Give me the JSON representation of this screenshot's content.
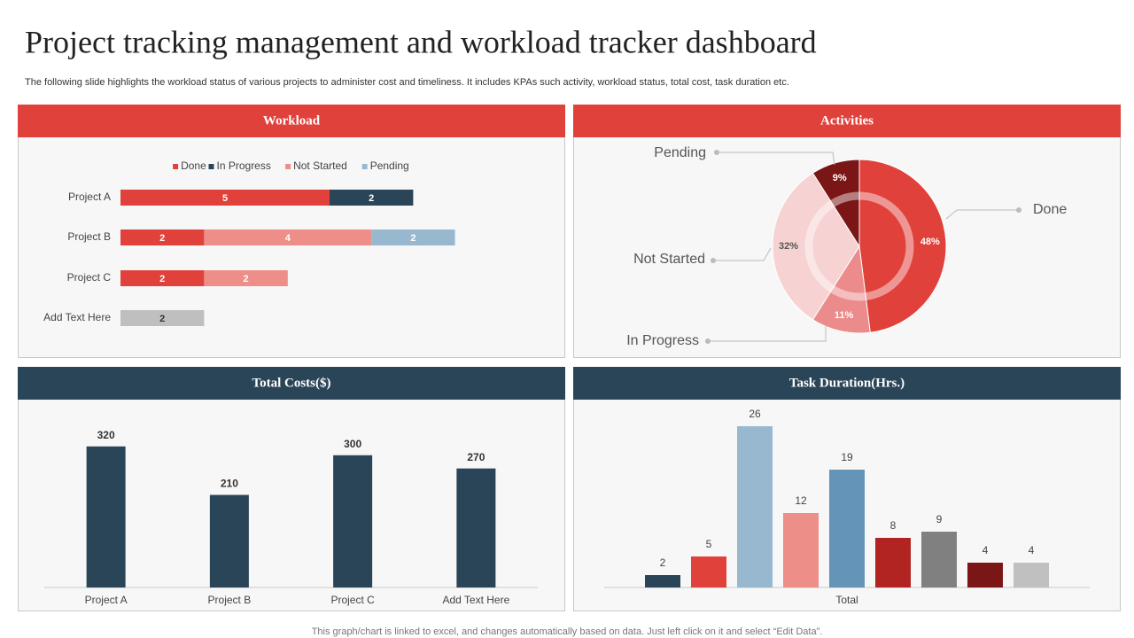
{
  "title": "Project tracking management and workload tracker dashboard",
  "subtitle": "The following slide highlights the workload status of various projects to administer cost and timeliness. It includes KPAs such activity,  workload status, total cost, task duration etc.",
  "footer": "This graph/chart is linked to excel,  and changes automatically based on data. Just left click on it and select “Edit Data”.",
  "chart_data": [
    {
      "type": "bar",
      "orientation": "horizontal",
      "stacked": true,
      "title": "Workload",
      "categories": [
        "Project A",
        "Project B",
        "Project C",
        "Add Text Here"
      ],
      "series": [
        {
          "name": "Done",
          "color": "#e0413b",
          "values": [
            5,
            2,
            2,
            null
          ]
        },
        {
          "name": "In Progress",
          "color": "#2a4458",
          "values": [
            2,
            null,
            null,
            null
          ]
        },
        {
          "name": "Not Started",
          "color": "#ee8e88",
          "values": [
            null,
            4,
            2,
            null
          ]
        },
        {
          "name": "Pending",
          "color": "#98b8d0",
          "values": [
            null,
            2,
            null,
            null
          ]
        },
        {
          "color": "#bfbfbf",
          "values": [
            null,
            null,
            null,
            2
          ]
        }
      ],
      "xlim": [
        0,
        10
      ],
      "legend": "top"
    },
    {
      "type": "pie",
      "title": "Activities",
      "categories": [
        "Done",
        "In Progress",
        "Not Started",
        "Pending"
      ],
      "values": [
        48,
        11,
        32,
        9
      ],
      "value_labels": [
        "48%",
        "11%",
        "32%",
        "9%"
      ],
      "colors": [
        "#e0413b",
        "#eb8b8b",
        "#f7d2d2",
        "#7b1616"
      ]
    },
    {
      "type": "bar",
      "title": "Total Costs($)",
      "categories": [
        "Project A",
        "Project B",
        "Project C",
        "Add Text Here"
      ],
      "values": [
        320,
        210,
        300,
        270
      ],
      "color": "#2a4458",
      "ylim": [
        0,
        400
      ]
    },
    {
      "type": "bar",
      "title": "Task Duration(Hrs.)",
      "categories": [
        "Total"
      ],
      "series": [
        {
          "color": "#2a4458",
          "values": [
            2
          ]
        },
        {
          "color": "#e0413b",
          "values": [
            5
          ]
        },
        {
          "color": "#98b8d0",
          "values": [
            26
          ]
        },
        {
          "color": "#ee8e88",
          "values": [
            12
          ]
        },
        {
          "color": "#6495b8",
          "values": [
            19
          ]
        },
        {
          "color": "#b22422",
          "values": [
            8
          ]
        },
        {
          "color": "#808080",
          "values": [
            9
          ]
        },
        {
          "color": "#7b1616",
          "values": [
            4
          ]
        },
        {
          "color": "#c0c0c0",
          "values": [
            4
          ]
        }
      ],
      "ylim": [
        0,
        30
      ]
    }
  ]
}
